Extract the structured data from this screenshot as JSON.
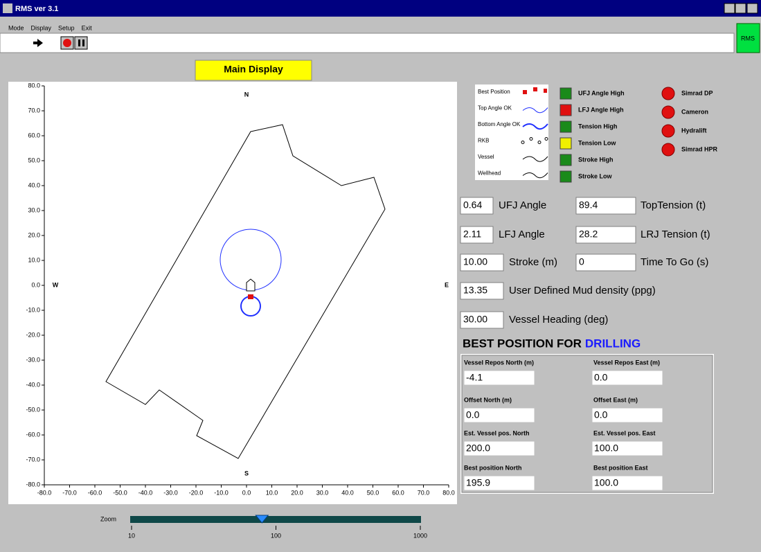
{
  "window": {
    "title": "RMS ver 3.1"
  },
  "menu": [
    "Mode",
    "Display",
    "Setup",
    "Exit"
  ],
  "toolbar": {
    "badge": "RMS"
  },
  "main_display": {
    "title": "Main Display"
  },
  "chart_data": {
    "type": "position-plot",
    "xlim": [
      -80,
      80
    ],
    "ylim": [
      -80,
      80
    ],
    "xticks": [
      {
        "value": -80,
        "label": "-80.0"
      },
      {
        "value": -70,
        "label": "-70.0"
      },
      {
        "value": -60,
        "label": "-60.0"
      },
      {
        "value": -50,
        "label": "-50.0"
      },
      {
        "value": -40,
        "label": "-40.0"
      },
      {
        "value": -30,
        "label": "-30.0"
      },
      {
        "value": -20,
        "label": "-20.0"
      },
      {
        "value": -10,
        "label": "-10.0"
      },
      {
        "value": 0,
        "label": "0.0"
      },
      {
        "value": 10,
        "label": "10.0"
      },
      {
        "value": 20,
        "label": "20.0"
      },
      {
        "value": 30,
        "label": "30.0"
      },
      {
        "value": 40,
        "label": "40.0"
      },
      {
        "value": 50,
        "label": "50.0"
      },
      {
        "value": 60,
        "label": "60.0"
      },
      {
        "value": 70,
        "label": "70.0"
      },
      {
        "value": 80,
        "label": "80.0"
      }
    ],
    "yticks": [
      {
        "value": 80,
        "label": "80.0"
      },
      {
        "value": 70,
        "label": "70.0"
      },
      {
        "value": 60,
        "label": "60.0"
      },
      {
        "value": 50,
        "label": "50.0"
      },
      {
        "value": 40,
        "label": "40.0"
      },
      {
        "value": 30,
        "label": "30.0"
      },
      {
        "value": 20,
        "label": "20.0"
      },
      {
        "value": 10,
        "label": "10.0"
      },
      {
        "value": 0,
        "label": "0.0"
      },
      {
        "value": -10,
        "label": "-10.0"
      },
      {
        "value": -20,
        "label": "-20.0"
      },
      {
        "value": -30,
        "label": "-30.0"
      },
      {
        "value": -40,
        "label": "-40.0"
      },
      {
        "value": -50,
        "label": "-50.0"
      },
      {
        "value": -60,
        "label": "-60.0"
      },
      {
        "value": -70,
        "label": "-70.0"
      },
      {
        "value": -80,
        "label": "-80.0"
      }
    ],
    "compass": {
      "north": "N",
      "south": "S",
      "west": "W",
      "east": "E"
    }
  },
  "legend": [
    "Best Position",
    "Top Angle OK",
    "Bottom Angle OK",
    "RKB",
    "Vessel",
    "Wellhead"
  ],
  "alarms": [
    {
      "label": "UFJ Angle High",
      "color": "#1a8a1a"
    },
    {
      "label": "LFJ Angle High",
      "color": "#e01010"
    },
    {
      "label": "Tension High",
      "color": "#1a8a1a"
    },
    {
      "label": "Tension Low",
      "color": "#f0f000"
    },
    {
      "label": "Stroke High",
      "color": "#1a8a1a"
    },
    {
      "label": "Stroke Low",
      "color": "#1a8a1a"
    }
  ],
  "systems": [
    {
      "label": "Simrad DP",
      "color": "#e01010"
    },
    {
      "label": "Cameron",
      "color": "#e01010"
    },
    {
      "label": "Hydralift",
      "color": "#e01010"
    },
    {
      "label": "Simrad HPR",
      "color": "#e01010"
    }
  ],
  "readouts": [
    {
      "value": "0.64",
      "label": "UFJ Angle"
    },
    {
      "value": "89.4",
      "label": "TopTension (t)"
    },
    {
      "value": "2.11",
      "label": "LFJ Angle"
    },
    {
      "value": "28.2",
      "label": "LRJ Tension (t)"
    },
    {
      "value": "10.00",
      "label": "Stroke (m)"
    },
    {
      "value": "0",
      "label": "Time To Go (s)"
    },
    {
      "value": "13.35",
      "label": "User Defined Mud density (ppg)"
    },
    {
      "value": "30.00",
      "label": "Vessel Heading (deg)"
    }
  ],
  "best_position": {
    "title": "BEST POSITION FOR",
    "highlight": "DRILLING",
    "fields": [
      {
        "label": "Vessel Repos North (m)",
        "value": "-4.1"
      },
      {
        "label": "Vessel Repos East (m)",
        "value": "0.0"
      },
      {
        "label": "Offset North (m)",
        "value": "0.0"
      },
      {
        "label": "Offset East (m)",
        "value": "0.0"
      },
      {
        "label": "Est. Vessel pos. North",
        "value": "200.0"
      },
      {
        "label": "Est. Vessel pos. East",
        "value": "100.0"
      },
      {
        "label": "Best position North",
        "value": "195.9"
      },
      {
        "label": "Best position East",
        "value": "100.0"
      }
    ]
  },
  "zoom": {
    "label": "Zoom",
    "log": true,
    "ticks": [
      10,
      100,
      1000
    ],
    "value": 80
  }
}
